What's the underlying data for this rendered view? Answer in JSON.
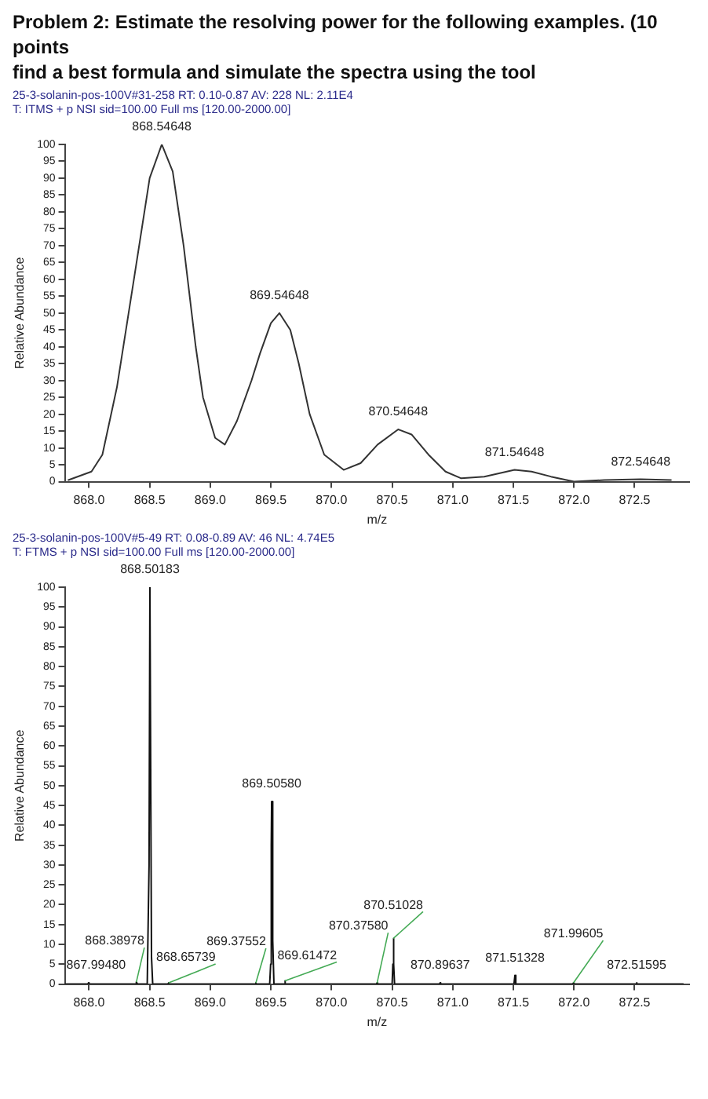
{
  "chart_data": [
    {
      "type": "line",
      "title": "Problem 2: Estimate the resolving power for the following examples. (10 points",
      "subtitle": "25-3-solanin-pos-100V#31-258  RT: 0.10-0.87  AV: 228  NL: 2.11E4\nT: ITMS + p NSI sid=100.00  Full ms [120.00-2000.00]",
      "xlabel": "m/z",
      "ylabel": "Relative Abundance",
      "grid": false,
      "legend": false,
      "annotations": [
        "find a best formula and simulate the spectra using the tool",
        {
          "text": "868.54648",
          "x": 868.6,
          "y": 100
        },
        {
          "text": "869.54648",
          "x": 869.57,
          "y": 50
        },
        {
          "text": "870.54648",
          "x": 870.55,
          "y": 15.5
        },
        {
          "text": "871.54648",
          "x": 871.51,
          "y": 3.5
        },
        {
          "text": "872.54648",
          "x": 872.55,
          "y": 0.7
        }
      ],
      "x": [
        867.83,
        868.02,
        868.11,
        868.23,
        868.37,
        868.5,
        868.6,
        868.69,
        868.78,
        868.88,
        868.94,
        869.04,
        869.12,
        869.22,
        869.34,
        869.41,
        869.5,
        869.57,
        869.66,
        869.73,
        869.82,
        869.94,
        870.1,
        870.24,
        870.38,
        870.55,
        870.66,
        870.8,
        870.94,
        871.07,
        871.26,
        871.51,
        871.65,
        871.81,
        872.0,
        872.25,
        872.55,
        872.8
      ],
      "series": [
        {
          "color": "#333333",
          "values": [
            0.5,
            3,
            8,
            28,
            60,
            90,
            100,
            92,
            70,
            40,
            25,
            13,
            11,
            18,
            30,
            38,
            47,
            50,
            45,
            35,
            20,
            8,
            3.5,
            5.5,
            11,
            15.5,
            14,
            8,
            3,
            1,
            1.5,
            3.5,
            3,
            1.5,
            0,
            0.5,
            0.7,
            0.5
          ]
        }
      ],
      "xlim": [
        867.8,
        872.95
      ],
      "ylim": [
        0,
        100
      ],
      "xticks": [
        {
          "value": 868,
          "label": "868.0"
        },
        {
          "value": 868.5,
          "label": "868.5"
        },
        {
          "value": 869,
          "label": "869.0"
        },
        {
          "value": 869.5,
          "label": "869.5"
        },
        {
          "value": 870,
          "label": "870.0"
        },
        {
          "value": 870.5,
          "label": "870.5"
        },
        {
          "value": 871,
          "label": "871.0"
        },
        {
          "value": 871.5,
          "label": "871.5"
        },
        {
          "value": 872,
          "label": "872.0"
        },
        {
          "value": 872.5,
          "label": "872.5"
        }
      ],
      "yticks": [
        0,
        5,
        10,
        15,
        20,
        25,
        30,
        35,
        40,
        45,
        50,
        55,
        60,
        65,
        70,
        75,
        80,
        85,
        90,
        95,
        100
      ]
    },
    {
      "type": "line",
      "subtitle": "25-3-solanin-pos-100V#5-49  RT: 0.08-0.89  AV: 46  NL: 4.74E5\nT: FTMS + p NSI sid=100.00  Full ms [120.00-2000.00]",
      "xlabel": "m/z",
      "ylabel": "Relative Abundance",
      "grid": false,
      "legend": false,
      "annotations": [
        {
          "text": "867.99480",
          "x": 867.995,
          "y": 0.3
        },
        {
          "text": "868.38978",
          "x": 868.39,
          "y": 0.5
        },
        {
          "text": "868.50183",
          "x": 868.502,
          "y": 100
        },
        {
          "text": "868.65739",
          "x": 868.657,
          "y": 0.3
        },
        {
          "text": "869.37552",
          "x": 869.376,
          "y": 0.3
        },
        {
          "text": "869.50580",
          "x": 869.506,
          "y": 46
        },
        {
          "text": "869.61472",
          "x": 869.615,
          "y": 0.8
        },
        {
          "text": "870.37580",
          "x": 870.376,
          "y": 0.3
        },
        {
          "text": "870.51028",
          "x": 870.51,
          "y": 11.5
        },
        {
          "text": "870.89637",
          "x": 870.896,
          "y": 0.3
        },
        {
          "text": "871.51328",
          "x": 871.513,
          "y": 2.2
        },
        {
          "text": "871.99605",
          "x": 871.996,
          "y": 0.3
        },
        {
          "text": "872.51595",
          "x": 872.516,
          "y": 0.3
        }
      ],
      "x": [
        867.8,
        867.99,
        867.995,
        868.0,
        868.38,
        868.39,
        868.4,
        868.48,
        868.495,
        868.502,
        868.515,
        868.525,
        868.65,
        868.657,
        868.665,
        869.37,
        869.376,
        869.38,
        869.49,
        869.498,
        869.503,
        869.506,
        869.515,
        869.525,
        869.61,
        869.615,
        869.62,
        870.37,
        870.376,
        870.38,
        870.5,
        870.506,
        870.51,
        870.515,
        870.52,
        870.89,
        870.896,
        870.9,
        871.505,
        871.513,
        871.52,
        871.99,
        871.996,
        872.0,
        872.51,
        872.516,
        872.52,
        872.9
      ],
      "series": [
        {
          "color": "#111111",
          "values": [
            0,
            0,
            0.3,
            0,
            0,
            0.5,
            0,
            0,
            30,
            100,
            7,
            0,
            0,
            0.3,
            0,
            0,
            0.3,
            0,
            0,
            5,
            35,
            46,
            11,
            0,
            0,
            0.8,
            0,
            0,
            0.3,
            0,
            0,
            5,
            11.5,
            5,
            0,
            0,
            0.3,
            0,
            0,
            2.2,
            0,
            0,
            0.3,
            0,
            0,
            0.3,
            0,
            0
          ]
        }
      ],
      "xlim": [
        867.8,
        872.95
      ],
      "ylim": [
        0,
        100
      ],
      "xticks": [
        {
          "value": 868,
          "label": "868.0"
        },
        {
          "value": 868.5,
          "label": "868.5"
        },
        {
          "value": 869,
          "label": "869.0"
        },
        {
          "value": 869.5,
          "label": "869.5"
        },
        {
          "value": 870,
          "label": "870.0"
        },
        {
          "value": 870.5,
          "label": "870.5"
        },
        {
          "value": 871,
          "label": "871.0"
        },
        {
          "value": 871.5,
          "label": "871.5"
        },
        {
          "value": 872,
          "label": "872.0"
        },
        {
          "value": 872.5,
          "label": "872.5"
        }
      ],
      "yticks": [
        0,
        5,
        10,
        15,
        20,
        25,
        30,
        35,
        40,
        45,
        50,
        55,
        60,
        65,
        70,
        75,
        80,
        85,
        90,
        95,
        100
      ]
    }
  ]
}
